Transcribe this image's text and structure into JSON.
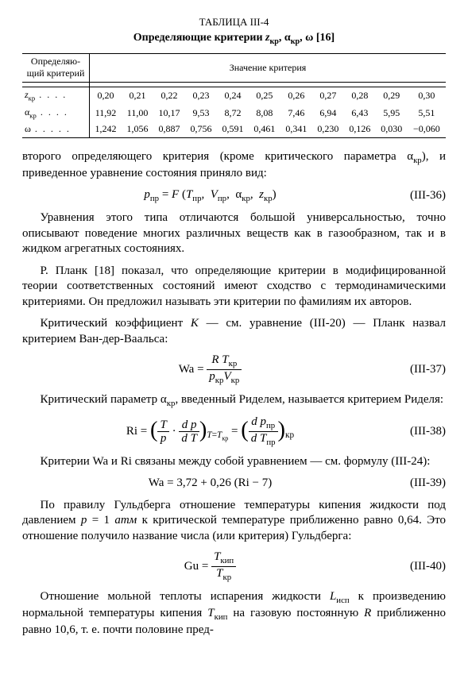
{
  "table": {
    "caption": "ТАБЛИЦА III-4",
    "title_html": "Определяющие критерии <span class='it'>z</span><span class='sub'>кр</span>, α<span class='sub'>кр</span>, ω [16]",
    "col_left_header": "Определяю-\nщий критерий",
    "col_right_header": "Значение критерия",
    "rows": [
      {
        "label_html": "<span class='it'>z</span><span class='sub'>кр</span><span class='dots'> . . . .</span>",
        "values": [
          "0,20",
          "0,21",
          "0,22",
          "0,23",
          "0,24",
          "0,25",
          "0,26",
          "0,27",
          "0,28",
          "0,29",
          "0,30"
        ]
      },
      {
        "label_html": "α<span class='sub'>кр</span><span class='dots'> . . . .</span>",
        "values": [
          "11,92",
          "11,00",
          "10,17",
          "9,53",
          "8,72",
          "8,08",
          "7,46",
          "6,94",
          "6,43",
          "5,95",
          "5,51"
        ]
      },
      {
        "label_html": "ω<span class='dots'> . . . . .</span>",
        "values": [
          "1,242",
          "1,056",
          "0,887",
          "0,756",
          "0,591",
          "0,461",
          "0,341",
          "0,230",
          "0,126",
          "0,030",
          "−0,060"
        ]
      }
    ],
    "font_size_pt": 9
  },
  "paragraphs": {
    "p1_html": "второго определяющего критерия (кроме критического параметра α<span class='sub'>кр</span>), и приведенное уравнение состояния приняло вид:",
    "p2_html": "Уравнения этого типа отличаются большой универсальностью, точно описывают поведение многих различных веществ как в газообразном, так и в жидком агрегатных состояниях.",
    "p3_html": "Р. Планк [18] показал, что определяющие критерии в модифицированной теории соответственных состояний имеют сходство с термодинамическими критериями. Он предложил называть эти критерии по фамилиям их авторов.",
    "p4_html": "Критический коэффициент <span class='it'>K</span> — см. уравнение (III-20) — Планк назвал критерием Ван-дер-Ваальса:",
    "p5_html": "Критический параметр α<span class='sub'>кр</span>, введенный Риделем, называется критерием Риделя:",
    "p6_html": "Критерии Wa и Ri связаны между собой уравнением — см. формулу (III-24):",
    "p7_html": "По правилу Гульдберга отношение температуры кипения жидкости под давлением <span class='it'>p</span> = 1 <span class='it'>атм</span> к критической температуре приближенно равно 0,64. Это отношение получило название числа (или критерия) Гульдберга:",
    "p8_html": "Отношение мольной теплоты испарения жидкости <span class='it'>L</span><span class='sub'>исп</span> к произведению нормальной температуры кипения <span class='it'>T</span><span class='sub'>кип</span> на газовую постоянную <span class='it'>R</span> приближенно равно 10,6, т. е. почти половине пред-"
  },
  "equations": {
    "e36": {
      "num": "(III-36)",
      "html": "<span class='it'>p</span><span class='sub'>пр</span> = <span class='it'>F</span> (<span class='it'>T</span><span class='sub'>пр</span>, &nbsp;<span class='it'>V</span><span class='sub'>пр</span>, &nbsp;α<span class='sub'>кр</span>, &nbsp;<span class='it'>z</span><span class='sub'>кр</span>)"
    },
    "e37": {
      "num": "(III-37)",
      "html": "Wa = <span class='frac'><span class='num'><span class='it'>R T</span><span class='sub'>кр</span></span><span class='den'><span class='it'>p</span><span class='sub'>кр</span><span class='it'>V</span><span class='sub'>кр</span></span></span>"
    },
    "e38": {
      "num": "(III-38)",
      "html": "Ri = <span class='bigparen'>(</span><span class='frac'><span class='num'><span class='it'>T</span></span><span class='den'><span class='it'>p</span></span></span> · <span class='frac'><span class='num'><span class='it'>d p</span></span><span class='den'><span class='it'>d T</span></span></span><span class='bigparen'>)</span><span class='sub-after'><span class='it'>T</span>=<span class='it'>T</span><span class='sub'>кр</span></span> = <span class='bigparen'>(</span><span class='frac'><span class='num'><span class='it'>d p</span><span class='sub'>пр</span></span><span class='den'><span class='it'>d T</span><span class='sub'>пр</span></span></span><span class='bigparen'>)</span><span class='sub-after'>кр</span>"
    },
    "e39": {
      "num": "(III-39)",
      "html": "Wa = 3,72 + 0,26 (Ri − 7)"
    },
    "e40": {
      "num": "(III-40)",
      "html": "Gu = <span class='frac'><span class='num'><span class='it'>T</span><span class='sub'>кип</span></span><span class='den'><span class='it'>T</span><span class='sub'>кр</span></span></span>"
    }
  },
  "style": {
    "body_font_pt": 11,
    "eq_font_pt": 11,
    "text_color": "#000000",
    "background_color": "#ffffff"
  }
}
